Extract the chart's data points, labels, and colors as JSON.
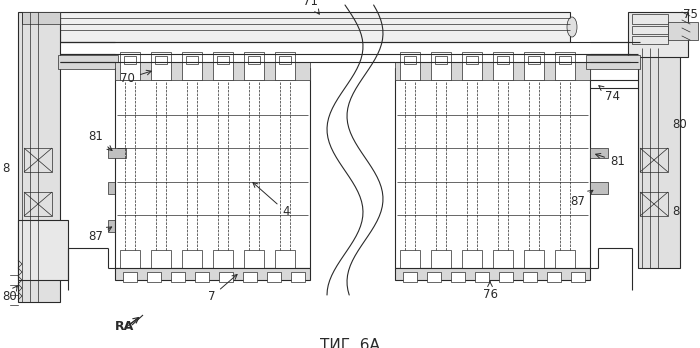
{
  "bg_color": "#f0efe8",
  "line_color": "#2a2a2a",
  "title": "ΤИГ. 6А",
  "fig_width": 7.0,
  "fig_height": 3.48,
  "dpi": 100
}
